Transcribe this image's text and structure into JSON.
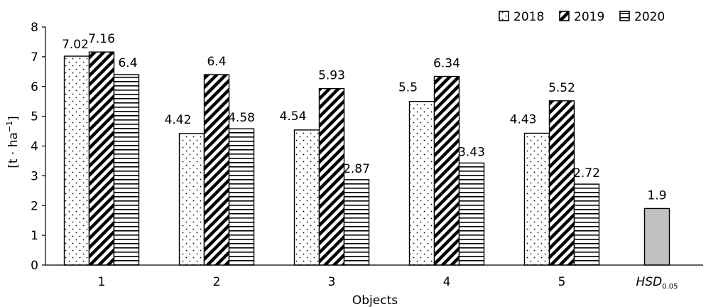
{
  "chart_data": {
    "type": "bar",
    "categories": [
      "1",
      "2",
      "3",
      "4",
      "5"
    ],
    "series": [
      {
        "name": "2018",
        "values": [
          7.02,
          4.42,
          4.54,
          5.5,
          4.43
        ]
      },
      {
        "name": "2019",
        "values": [
          7.16,
          6.4,
          5.93,
          6.34,
          5.52
        ]
      },
      {
        "name": "2020",
        "values": [
          6.4,
          4.58,
          2.87,
          3.43,
          2.72
        ]
      }
    ],
    "extra_bar": {
      "label": "HSD",
      "label_subscript": "0.05",
      "value": 1.9,
      "value_label": "1.9",
      "color": "#c0c0c0"
    },
    "value_labels": [
      [
        "7.02",
        "4.42",
        "4.54",
        "5.5",
        "4.43"
      ],
      [
        "7.16",
        "6.4",
        "5.93",
        "6.34",
        "5.52"
      ],
      [
        "6.4",
        "4.58",
        "2.87",
        "3.43",
        "2.72"
      ]
    ],
    "title": "",
    "xlabel": "Objects",
    "ylabel": "[t · ha",
    "ylabel_superscript": "−1",
    "ylabel_suffix": "]",
    "ylim": [
      0,
      8
    ],
    "yticks": [
      "0",
      "1",
      "2",
      "3",
      "4",
      "5",
      "6",
      "7",
      "8"
    ],
    "grid": false,
    "legend_position": "top-right",
    "patterns": [
      "dots",
      "diagonal-stripes",
      "horizontal-lines"
    ]
  }
}
